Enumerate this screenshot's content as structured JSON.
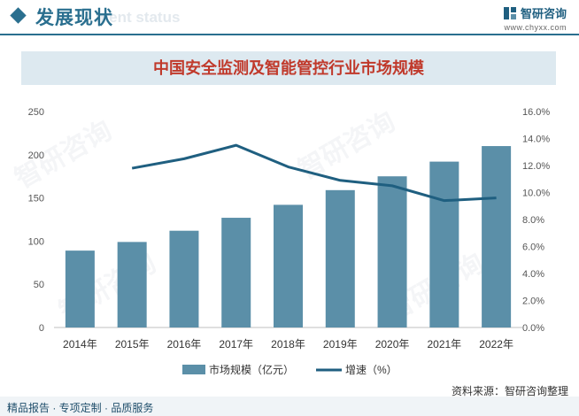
{
  "header": {
    "section_title": "发展现状",
    "section_subtitle": "ment status",
    "brand_name": "智研咨询",
    "brand_url": "www.chyxx.com"
  },
  "chart_data": {
    "type": "bar",
    "title": "中国安全监测及智能管控行业市场规模",
    "categories": [
      "2014年",
      "2015年",
      "2016年",
      "2017年",
      "2018年",
      "2019年",
      "2020年",
      "2021年",
      "2022年"
    ],
    "series": [
      {
        "name": "市场规模（亿元）",
        "type": "bar",
        "axis": "left",
        "values": [
          89,
          99,
          112,
          127,
          142,
          159,
          175,
          192,
          210
        ]
      },
      {
        "name": "增速（%）",
        "type": "line",
        "axis": "right",
        "values": [
          null,
          11.8,
          12.5,
          13.5,
          11.9,
          10.9,
          10.5,
          9.4,
          9.6
        ]
      }
    ],
    "y_left": {
      "min": 0,
      "max": 250,
      "ticks": [
        "0",
        "50",
        "100",
        "150",
        "200",
        "250"
      ]
    },
    "y_right": {
      "min": 0,
      "max": 16,
      "ticks": [
        "0.0%",
        "2.0%",
        "4.0%",
        "6.0%",
        "8.0%",
        "10.0%",
        "12.0%",
        "14.0%",
        "16.0%"
      ]
    },
    "legend_position": "bottom",
    "grid": false,
    "colors": {
      "bar": "#5b8fa8",
      "line": "#1f5f80"
    }
  },
  "footer": {
    "left": "精品报告 · 专项定制 · 品质服务",
    "source": "资料来源：智研咨询整理"
  },
  "watermark_text": "智研咨询"
}
